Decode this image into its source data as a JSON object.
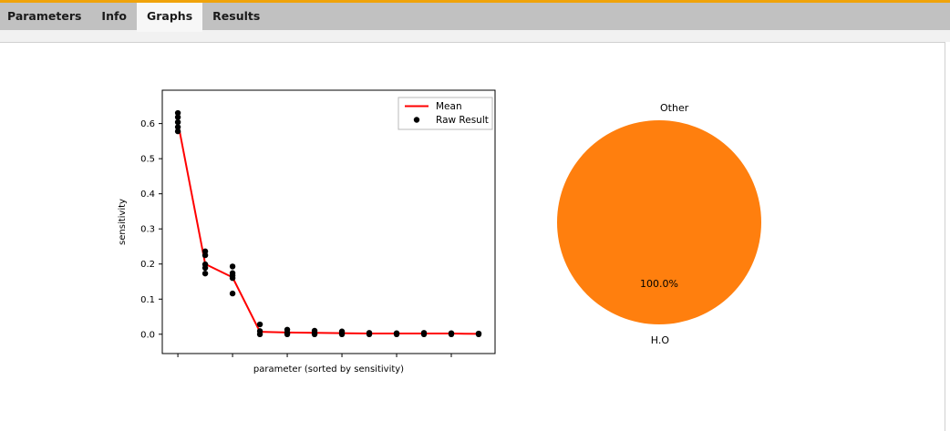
{
  "window": {
    "accent_color": "#f0a30a",
    "tabbar_color": "#c1c1c1"
  },
  "tabs": [
    {
      "label": "Parameters",
      "active": false
    },
    {
      "label": "Info",
      "active": false
    },
    {
      "label": "Graphs",
      "active": true
    },
    {
      "label": "Results",
      "active": false
    }
  ],
  "chart_data": [
    {
      "type": "scatter",
      "title": "",
      "xlabel": "parameter (sorted by sensitivity)",
      "ylabel": "sensitivity",
      "xlim": [
        0.43,
        12.6
      ],
      "ylim": [
        -0.055,
        0.695
      ],
      "yticks": [
        0.0,
        0.1,
        0.2,
        0.3,
        0.4,
        0.5,
        0.6
      ],
      "xticks": [
        1,
        3,
        5,
        7,
        9,
        11
      ],
      "xtick_labels_visible": false,
      "grid": false,
      "x": [
        1,
        2,
        3,
        4,
        5,
        6,
        7,
        8,
        9,
        10,
        11,
        12
      ],
      "series": [
        {
          "name": "Mean",
          "kind": "line",
          "color": "#ff0000",
          "values": [
            0.604,
            0.2,
            0.162,
            0.007,
            0.005,
            0.004,
            0.003,
            0.002,
            0.002,
            0.002,
            0.002,
            0.001
          ]
        },
        {
          "name": "Raw Result",
          "kind": "scatter",
          "color": "#000000",
          "values": [
            [
              0.578,
              0.59,
              0.604,
              0.618,
              0.63
            ],
            [
              0.173,
              0.189,
              0.199,
              0.225,
              0.236
            ],
            [
              0.116,
              0.16,
              0.167,
              0.174,
              0.193
            ],
            [
              0.0,
              0.009,
              0.028
            ],
            [
              0.0,
              0.005,
              0.013
            ],
            [
              0.0,
              0.004,
              0.01
            ],
            [
              0.0,
              0.003,
              0.008
            ],
            [
              0.0,
              0.004
            ],
            [
              0.0,
              0.003
            ],
            [
              0.0,
              0.004
            ],
            [
              0.0,
              0.003
            ],
            [
              0.0,
              0.002
            ]
          ]
        }
      ],
      "legend": {
        "position": "upper right",
        "entries": [
          "Mean",
          "Raw Result"
        ]
      }
    },
    {
      "type": "pie",
      "title": "",
      "color": "#ff7f0e",
      "startangle": 90,
      "slices": [
        {
          "label": "Other",
          "value": 0.0,
          "pct": "0.0%"
        },
        {
          "label": "H.O",
          "value": 100.0,
          "pct": "100.0%"
        }
      ]
    }
  ]
}
